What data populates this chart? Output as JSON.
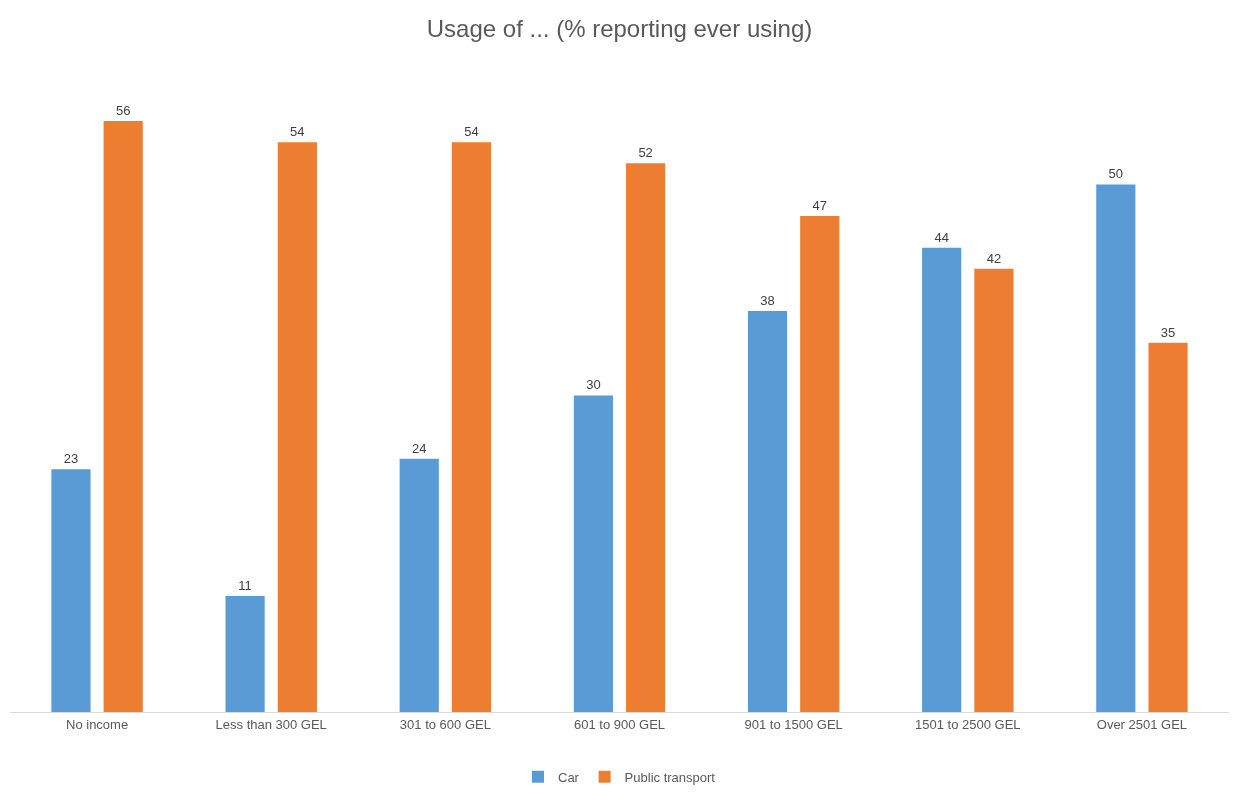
{
  "chart_data": {
    "type": "bar",
    "title": "Usage of ... (% reporting ever using)",
    "categories": [
      "No income",
      "Less than 300 GEL",
      "301 to 600 GEL",
      "601 to 900 GEL",
      "901 to 1500 GEL",
      "1501 to 2500 GEL",
      "Over 2501 GEL"
    ],
    "series": [
      {
        "name": "Car",
        "color": "#5b9bd5",
        "values": [
          23,
          11,
          24,
          30,
          38,
          44,
          50
        ]
      },
      {
        "name": "Public transport",
        "color": "#ed7d31",
        "values": [
          56,
          54,
          54,
          52,
          47,
          42,
          35
        ]
      }
    ],
    "data_labels": true,
    "legend": "bottom"
  }
}
